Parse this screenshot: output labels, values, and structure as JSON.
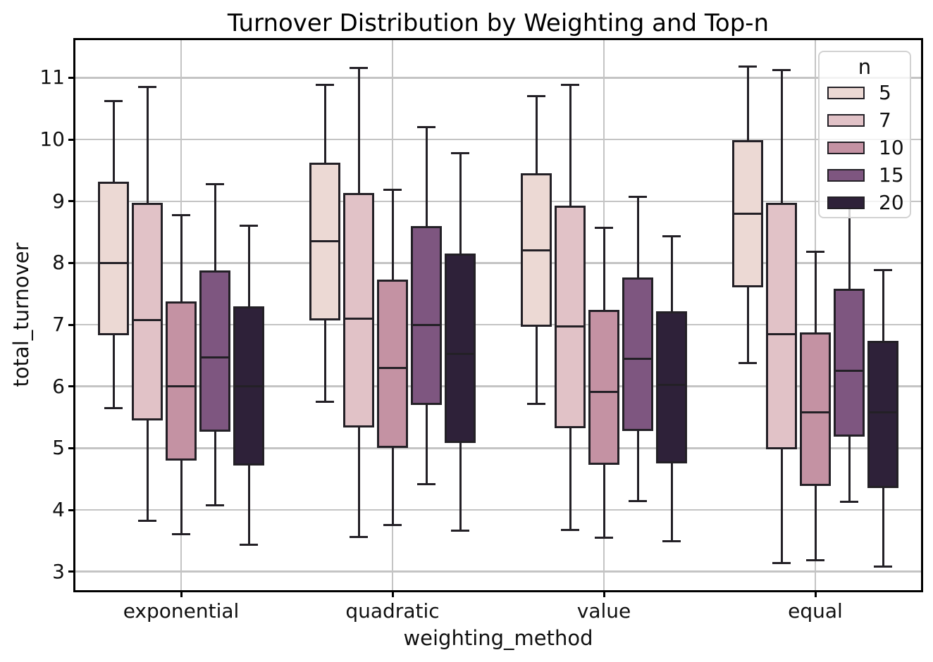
{
  "chart_data": {
    "type": "boxplot",
    "title": "Turnover Distribution by Weighting and Top-n",
    "xlabel": "weighting_method",
    "ylabel": "total_turnover",
    "categories": [
      "exponential",
      "quadratic",
      "value",
      "equal"
    ],
    "y_ticks": [
      3,
      4,
      5,
      6,
      7,
      8,
      9,
      10,
      11
    ],
    "ylim": [
      2.7,
      11.61
    ],
    "grid": true,
    "legend": {
      "title": "n",
      "position": "upper-right"
    },
    "box_stats_order": [
      "whisker_low",
      "q1",
      "median",
      "q3",
      "whisker_high"
    ],
    "series": [
      {
        "name": "5",
        "color": "#ecd9d4",
        "boxes": {
          "exponential": [
            5.65,
            6.83,
            8.0,
            9.32,
            10.62
          ],
          "quadratic": [
            5.75,
            7.07,
            8.35,
            9.62,
            10.88
          ],
          "value": [
            5.72,
            6.97,
            8.21,
            9.45,
            10.7
          ],
          "equal": [
            6.38,
            7.61,
            8.8,
            9.99,
            11.18
          ]
        }
      },
      {
        "name": "7",
        "color": "#e1c2c7",
        "boxes": {
          "exponential": [
            3.82,
            5.45,
            7.08,
            8.97,
            10.85
          ],
          "quadratic": [
            3.56,
            5.33,
            7.1,
            9.13,
            11.16
          ],
          "value": [
            3.68,
            5.32,
            6.97,
            8.93,
            10.89
          ],
          "equal": [
            3.14,
            4.98,
            6.85,
            8.98,
            11.12
          ]
        }
      },
      {
        "name": "10",
        "color": "#c492a3",
        "boxes": {
          "exponential": [
            3.61,
            4.8,
            6.0,
            7.38,
            8.78
          ],
          "quadratic": [
            3.76,
            5.01,
            6.3,
            7.73,
            9.19
          ],
          "value": [
            3.55,
            4.73,
            5.91,
            7.24,
            8.57
          ],
          "equal": [
            3.19,
            4.39,
            5.58,
            6.88,
            8.18
          ]
        }
      },
      {
        "name": "15",
        "color": "#7e5680",
        "boxes": {
          "exponential": [
            4.07,
            5.27,
            6.47,
            7.88,
            9.28
          ],
          "quadratic": [
            4.42,
            5.7,
            7.0,
            8.6,
            10.2
          ],
          "value": [
            4.14,
            5.28,
            6.45,
            7.76,
            9.07
          ],
          "equal": [
            4.13,
            5.19,
            6.25,
            7.58,
            9.0
          ]
        }
      },
      {
        "name": "20",
        "color": "#2e2139",
        "boxes": {
          "exponential": [
            3.44,
            4.72,
            6.0,
            7.3,
            8.6
          ],
          "quadratic": [
            3.66,
            5.08,
            6.53,
            8.15,
            9.78
          ],
          "value": [
            3.49,
            4.75,
            6.02,
            7.22,
            8.43
          ],
          "equal": [
            3.08,
            4.35,
            5.58,
            6.74,
            7.89
          ]
        }
      }
    ]
  }
}
